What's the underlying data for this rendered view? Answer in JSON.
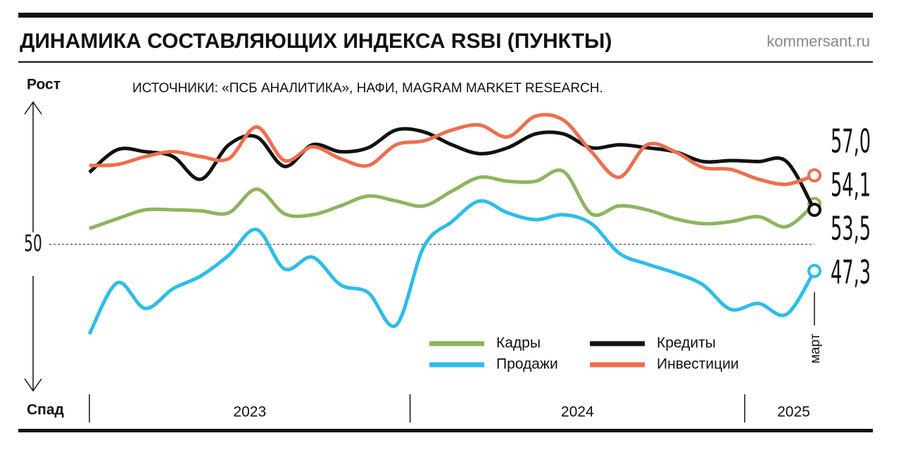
{
  "chart_data": {
    "type": "line",
    "title": "ДИНАМИКА СОСТАВЛЯЮЩИХ ИНДЕКСА RSBI (ПУНКТЫ)",
    "site": "kommersant.ru",
    "source": "ИСТОЧНИКИ: «ПСБ АНАЛИТИКА», НАФИ, MAGRAM MARKET RESEARCH.",
    "y_top_label": "Рост",
    "y_bottom_label": "Спад",
    "last_point_label": "март",
    "categories": [
      "2023",
      null,
      null,
      null,
      null,
      null,
      null,
      null,
      null,
      null,
      null,
      null,
      "2024",
      null,
      null,
      null,
      null,
      null,
      null,
      null,
      null,
      null,
      null,
      null,
      "2025",
      null,
      null
    ],
    "ylim": [
      35,
      65
    ],
    "yticks": [
      50
    ],
    "series": [
      {
        "name": "Кадры",
        "color": "#8db55e",
        "values": [
          51.6,
          52.6,
          53.5,
          53.5,
          53.4,
          53.2,
          55.6,
          53.1,
          53.0,
          53.9,
          54.9,
          54.4,
          53.9,
          55.4,
          56.8,
          56.4,
          56.4,
          57.4,
          53.1,
          53.9,
          53.5,
          52.6,
          52.1,
          52.3,
          52.8,
          51.8,
          54.1
        ],
        "value_labels": [
          null,
          null,
          null,
          null,
          null,
          null,
          null,
          null,
          null,
          null,
          null,
          null,
          null,
          null,
          null,
          null,
          null,
          null,
          null,
          null,
          null,
          null,
          null,
          null,
          null,
          null,
          "54,1"
        ]
      },
      {
        "name": "Продажи",
        "color": "#2dbde8",
        "values": [
          40.9,
          46.1,
          43.5,
          45.5,
          46.8,
          48.9,
          51.5,
          47.5,
          48.7,
          45.9,
          45.1,
          41.8,
          49.8,
          52.3,
          54.4,
          53.2,
          52.5,
          53.0,
          52.1,
          49.1,
          48.0,
          47.1,
          45.9,
          43.4,
          44.0,
          42.9,
          47.3
        ],
        "value_labels": [
          null,
          null,
          null,
          null,
          null,
          null,
          null,
          null,
          null,
          null,
          null,
          null,
          null,
          null,
          null,
          null,
          null,
          null,
          null,
          null,
          null,
          null,
          null,
          null,
          null,
          null,
          "47,3"
        ]
      },
      {
        "name": "Кредиты",
        "color": "#111111",
        "values": [
          57.3,
          59.6,
          59.4,
          58.9,
          56.6,
          60.1,
          60.9,
          57.9,
          60.1,
          59.4,
          59.8,
          61.6,
          61.4,
          60.1,
          59.2,
          59.8,
          61.2,
          61.2,
          59.8,
          60.1,
          59.8,
          59.4,
          58.4,
          58.5,
          58.4,
          58.4,
          53.5
        ],
        "value_labels": [
          null,
          null,
          null,
          null,
          null,
          null,
          null,
          null,
          null,
          null,
          null,
          null,
          null,
          null,
          null,
          null,
          null,
          null,
          null,
          null,
          null,
          null,
          null,
          null,
          null,
          null,
          "53,5"
        ]
      },
      {
        "name": "Инвестиции",
        "color": "#ee6e4e",
        "values": [
          58.0,
          58.1,
          58.9,
          59.4,
          58.9,
          58.7,
          61.9,
          58.5,
          59.9,
          58.7,
          58.0,
          60.1,
          60.5,
          61.6,
          62.1,
          60.9,
          63.0,
          62.6,
          59.4,
          56.8,
          60.1,
          59.4,
          57.8,
          57.6,
          56.6,
          56.1,
          57.0
        ],
        "value_labels": [
          null,
          null,
          null,
          null,
          null,
          null,
          null,
          null,
          null,
          null,
          null,
          null,
          null,
          null,
          null,
          null,
          null,
          null,
          null,
          null,
          null,
          null,
          null,
          null,
          null,
          null,
          "57,0"
        ]
      }
    ]
  }
}
